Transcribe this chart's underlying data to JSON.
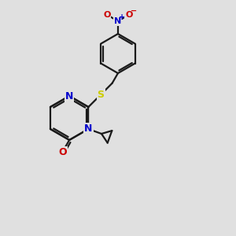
{
  "bg_color": "#e0e0e0",
  "bond_color": "#1a1a1a",
  "bond_width": 1.6,
  "atom_colors": {
    "N": "#0000cc",
    "O": "#cc0000",
    "S": "#cccc00",
    "C": "#1a1a1a"
  },
  "fig_width": 3.0,
  "fig_height": 3.0,
  "dpi": 100
}
